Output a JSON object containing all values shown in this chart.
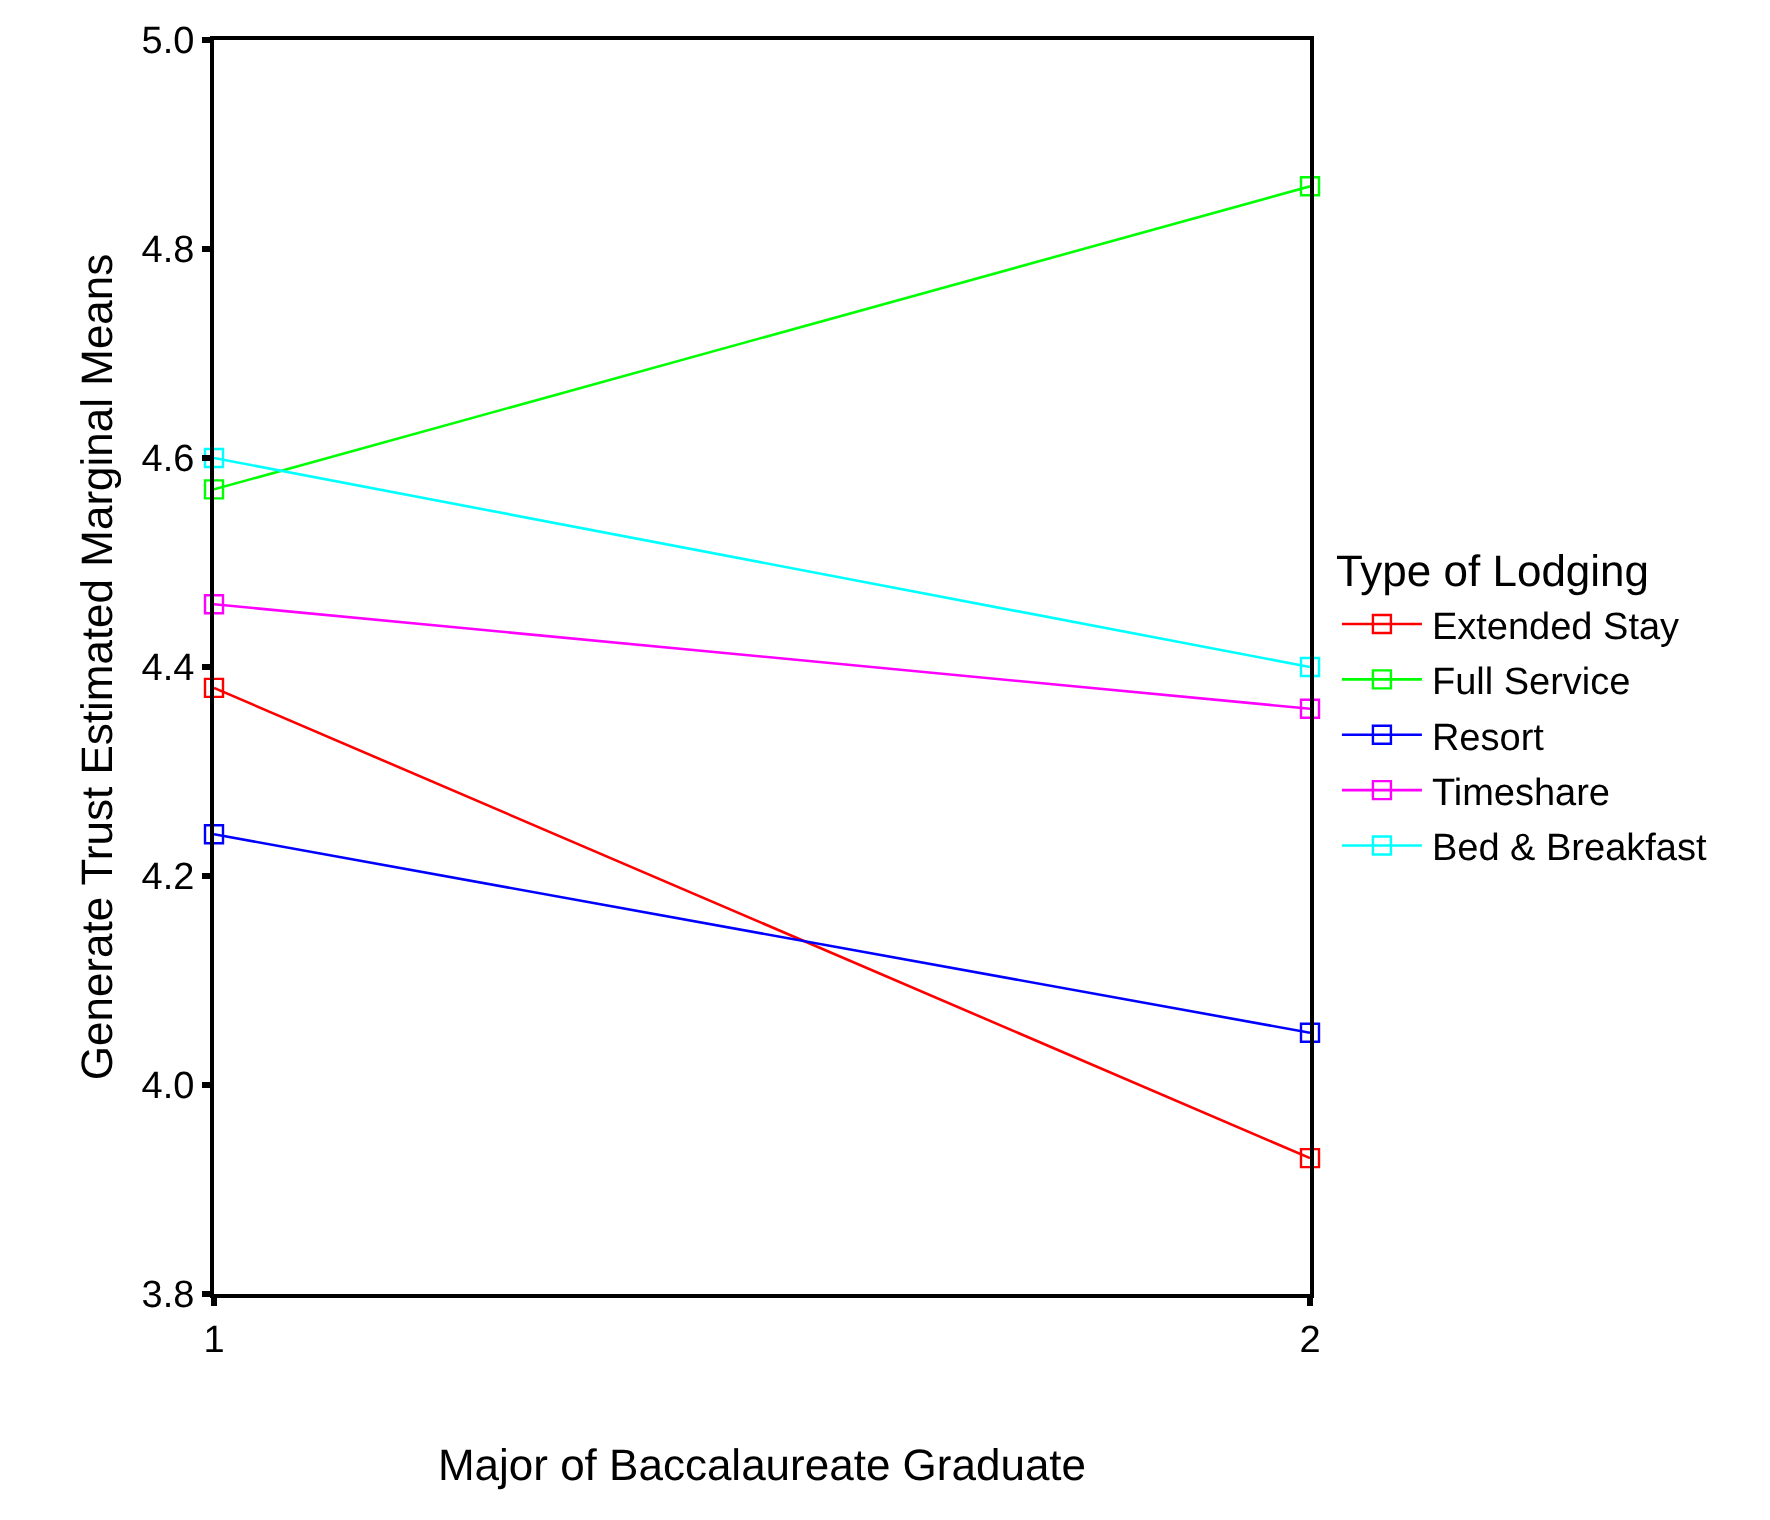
{
  "chart_data": {
    "type": "line",
    "xlabel": "Major of Baccalaureate Graduate",
    "ylabel": "Generate Trust Estimated Marginal Means",
    "legend_title": "Type of Lodging",
    "x": [
      1,
      2
    ],
    "xlim": [
      1,
      2
    ],
    "xticks": [
      1,
      2
    ],
    "ylim": [
      3.8,
      5.0
    ],
    "yticks": [
      3.8,
      {
        "value": 4,
        "label": "4.0"
      },
      4.2,
      4.4,
      4.6,
      4.8,
      {
        "value": 5,
        "label": "5.0"
      }
    ],
    "series": [
      {
        "name": "Extended Stay",
        "color": "#ff0000",
        "values": [
          4.38,
          3.93
        ]
      },
      {
        "name": "Full Service",
        "color": "#00ff00",
        "values": [
          4.57,
          4.86
        ]
      },
      {
        "name": "Resort",
        "color": "#0000ff",
        "values": [
          4.24,
          4.05
        ]
      },
      {
        "name": "Timeshare",
        "color": "#ff00ff",
        "values": [
          4.46,
          4.36
        ]
      },
      {
        "name": "Bed & Breakfast",
        "color": "#00ffff",
        "values": [
          4.6,
          4.4
        ]
      }
    ],
    "marker": "square",
    "line_style": "solid",
    "legend": "right"
  }
}
